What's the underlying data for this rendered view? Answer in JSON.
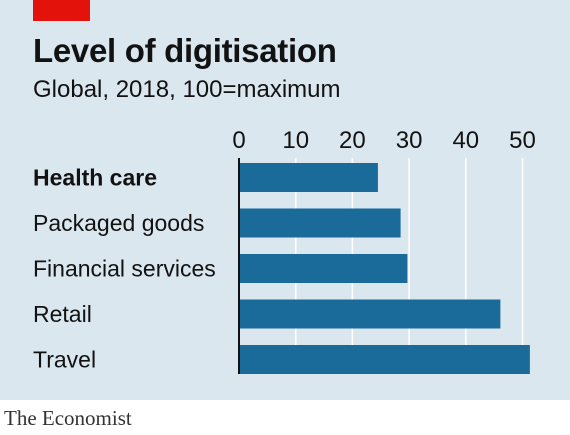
{
  "header": {
    "title": "Level of digitisation",
    "subtitle": "Global, 2018, 100=maximum"
  },
  "footer": {
    "source": "The Economist"
  },
  "colors": {
    "bar": "#1a6a9a",
    "accent": "#e3120b",
    "panel": "#dbe7ef",
    "grid": "#ffffff"
  },
  "chart_data": {
    "type": "bar",
    "orientation": "horizontal",
    "categories": [
      "Health care",
      "Packaged goods",
      "Financial services",
      "Retail",
      "Travel"
    ],
    "highlighted_category": "Health care",
    "values": [
      24.5,
      28.5,
      29.7,
      46.1,
      51.3
    ],
    "xlim": [
      0,
      52
    ],
    "xticks": [
      0,
      10,
      20,
      30,
      40,
      50
    ],
    "grid": true,
    "title": "Level of digitisation",
    "subtitle": "Global, 2018, 100=maximum",
    "xlabel": "",
    "ylabel": ""
  }
}
